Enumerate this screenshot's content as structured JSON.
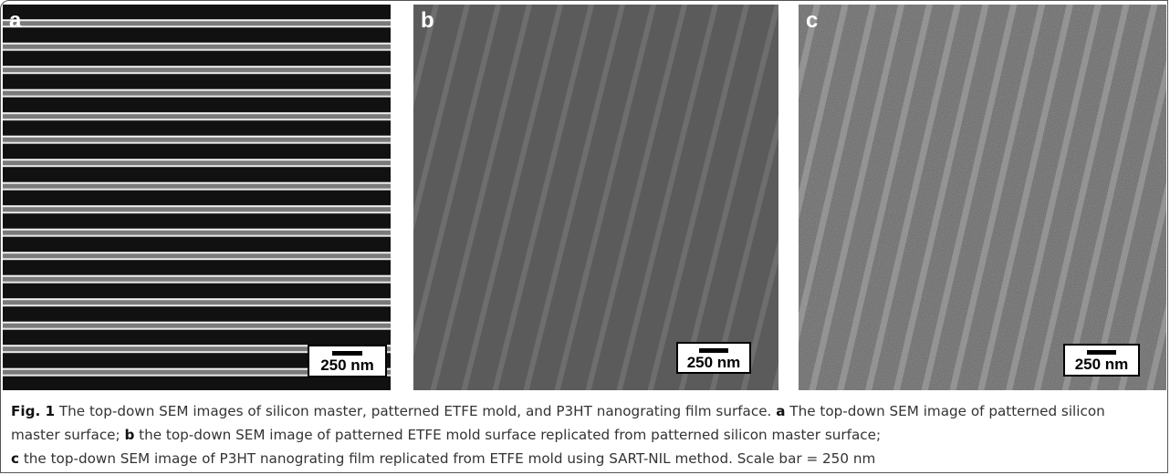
{
  "panels": [
    {
      "label": "a",
      "scale_bar": "250 nm"
    },
    {
      "label": "b",
      "scale_bar": "250 nm"
    },
    {
      "label": "c",
      "scale_bar": "250 nm"
    }
  ],
  "caption": {
    "label": "Fig. 1",
    "text": "The top-down SEM images of silicon master, patterned ETFE mold, and P3HT nanograting film surface.",
    "parts": [
      {
        "label": "a",
        "text": "The top-down SEM image of patterned silicon master surface;"
      },
      {
        "label": "b",
        "text": "the top-down SEM image of patterned ETFE mold surface replicated from patterned silicon master surface;"
      },
      {
        "label": "c",
        "text": "the top-down SEM image of P3HT nanograting film replicated from ETFE mold using SART-NIL method. Scale bar = 250 nm"
      }
    ]
  }
}
